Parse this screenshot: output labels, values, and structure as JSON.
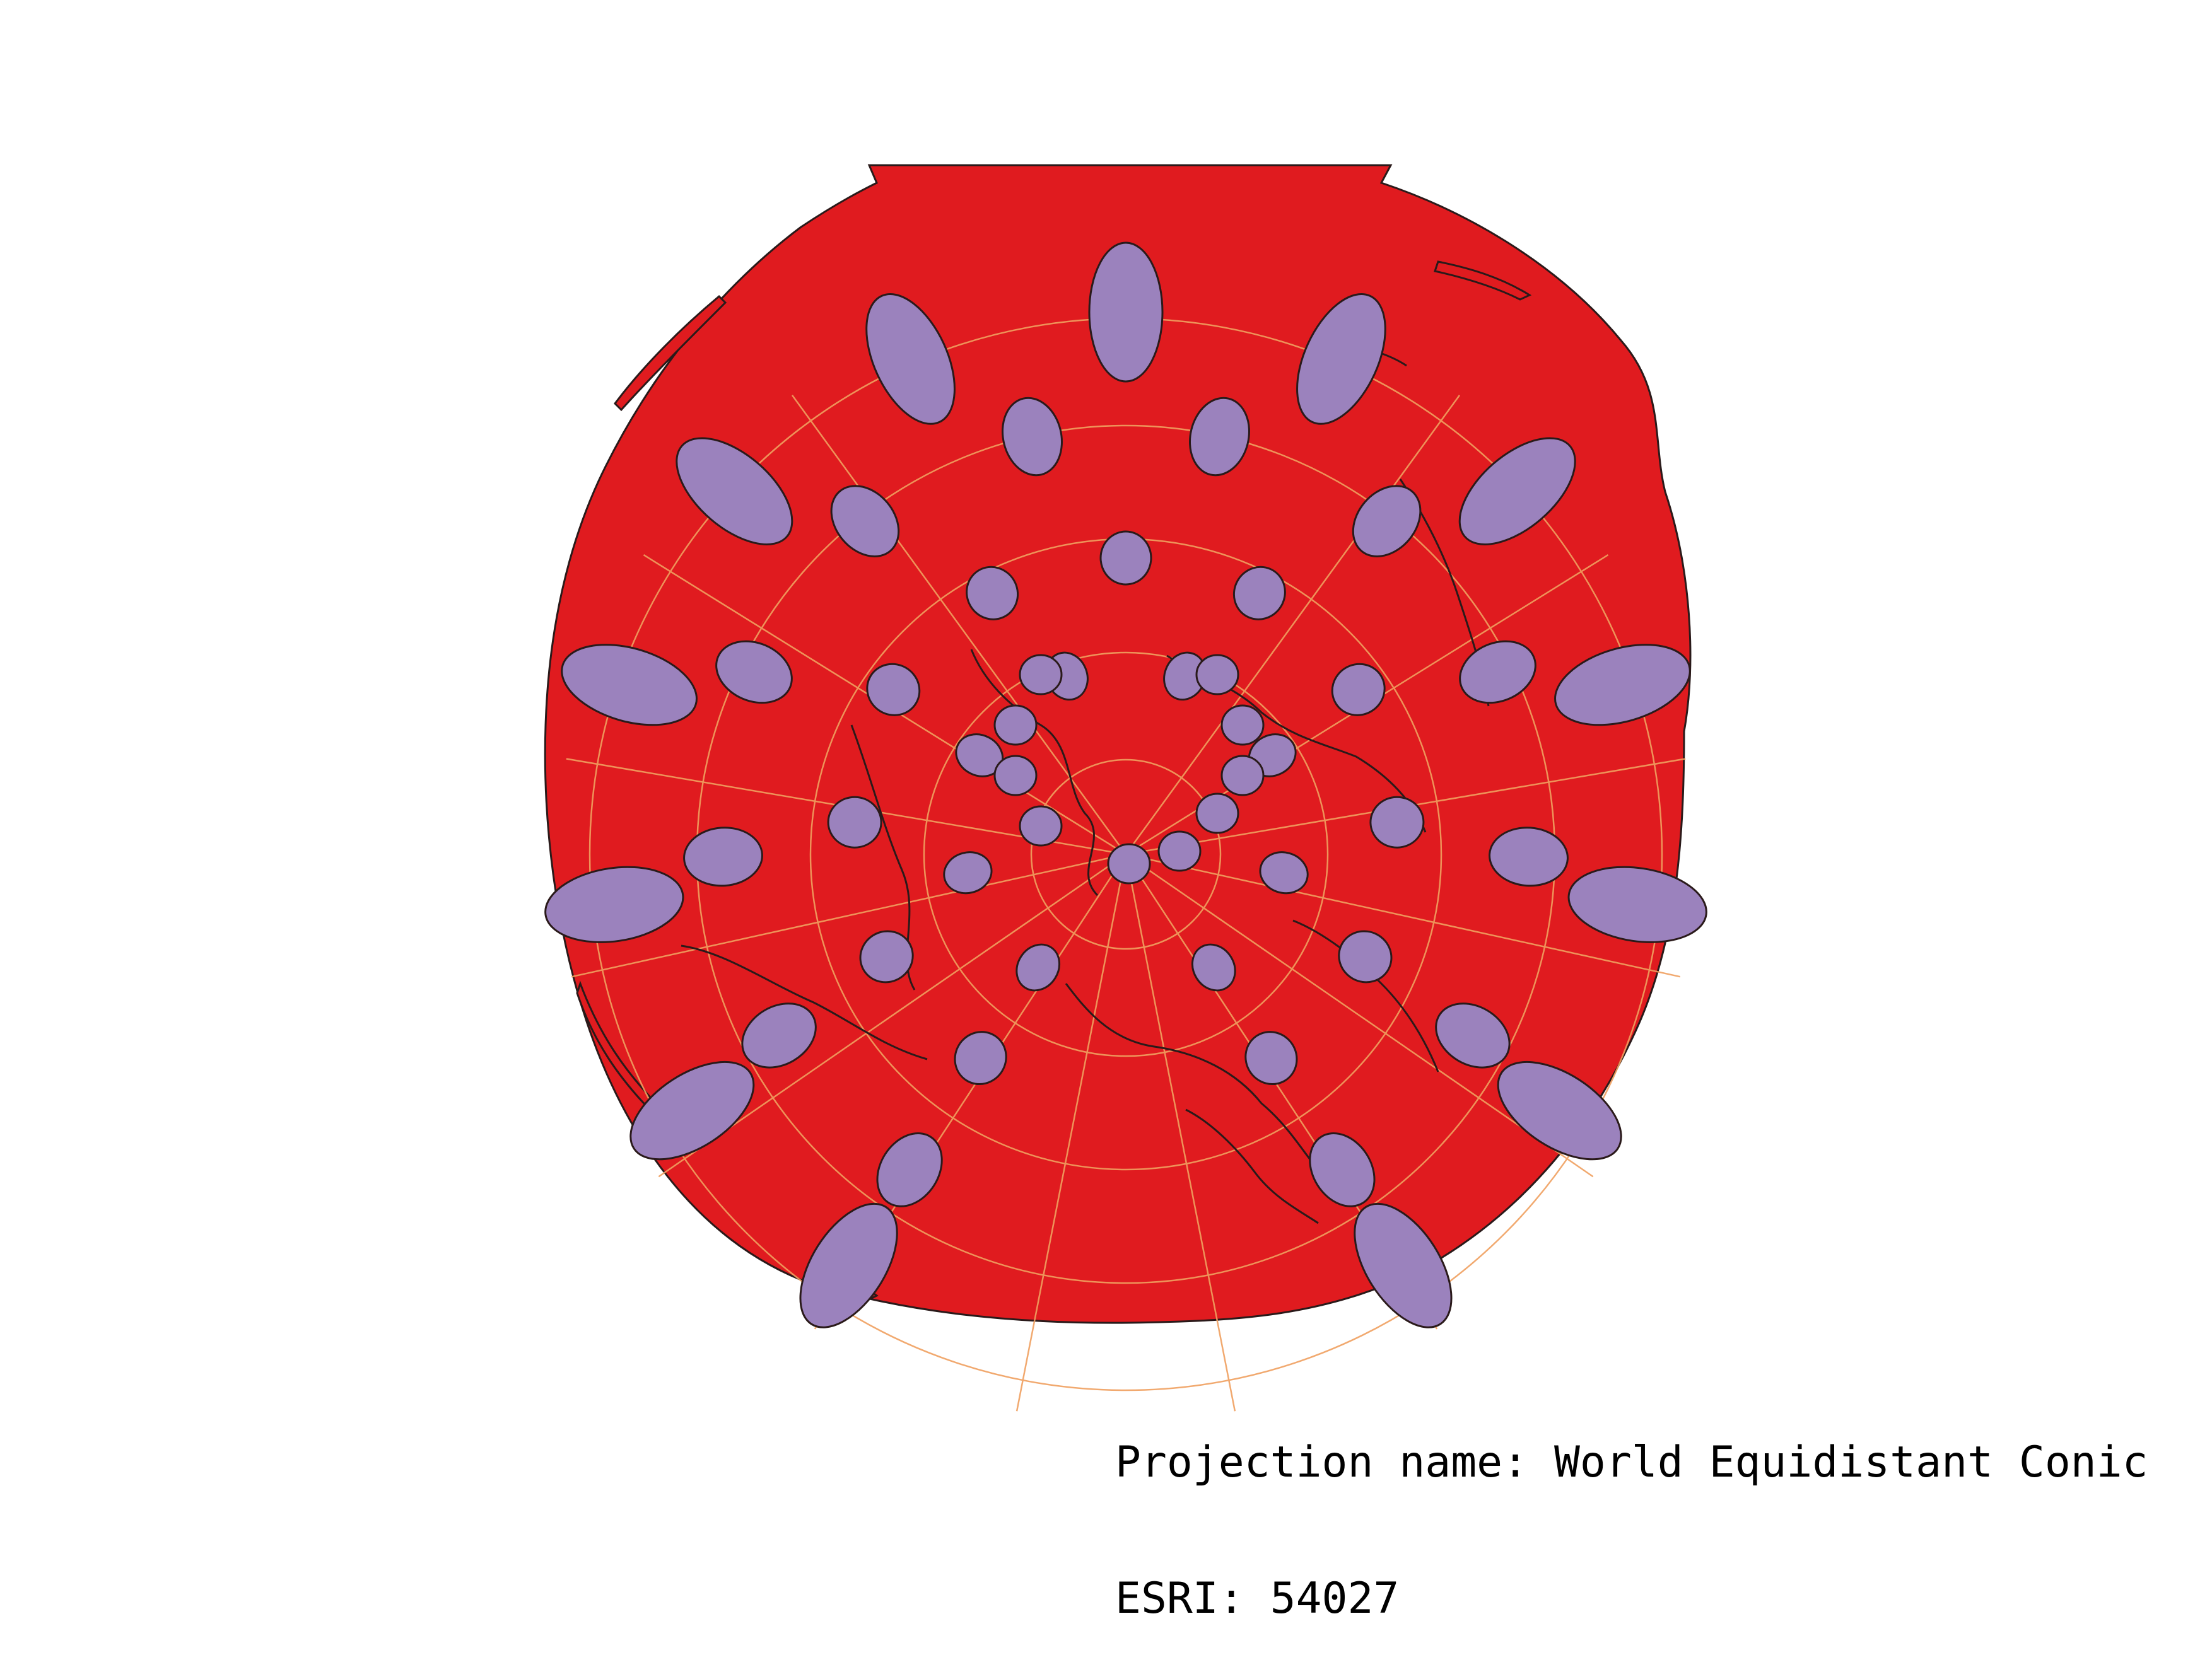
{
  "caption": {
    "projection_line": "Projection name: World Equidistant Conic",
    "esri_line": "ESRI: 54027"
  },
  "map": {
    "projection": "World Equidistant Conic",
    "esri_code": "54027",
    "colors": {
      "land_fill": "#e01b1f",
      "outline": "#2a1a1a",
      "ellipse_fill": "#9b82bd",
      "graticule": "#f0a060",
      "background": "#ffffff"
    }
  }
}
